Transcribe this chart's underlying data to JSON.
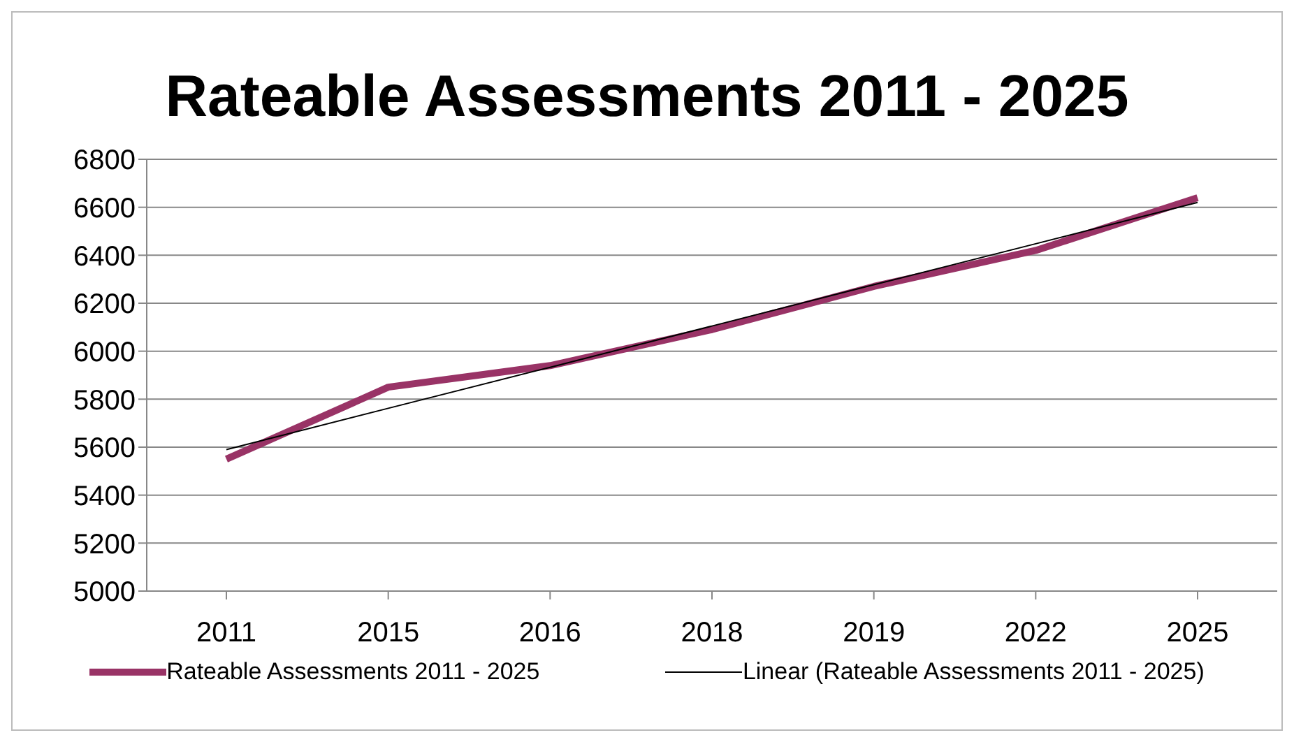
{
  "chart_data": {
    "type": "line",
    "title": "Rateable Assessments 2011 - 2025",
    "categories": [
      "2011",
      "2015",
      "2016",
      "2018",
      "2019",
      "2022",
      "2025"
    ],
    "series": [
      {
        "name": "Rateable Assessments 2011 - 2025",
        "color": "#993366",
        "values": [
          5550,
          5850,
          5940,
          6090,
          6270,
          6420,
          6640
        ]
      },
      {
        "name": "Linear (Rateable Assessments 2011 - 2025)",
        "color": "#000000",
        "values": [
          5590,
          5762,
          5933,
          6105,
          6277,
          6448,
          6620
        ]
      }
    ],
    "ylim": [
      5000,
      6800
    ],
    "yticks": [
      5000,
      5200,
      5400,
      5600,
      5800,
      6000,
      6200,
      6400,
      6600,
      6800
    ],
    "grid": "y",
    "legend": "bottom",
    "marker": "none",
    "line_style": "solid"
  }
}
